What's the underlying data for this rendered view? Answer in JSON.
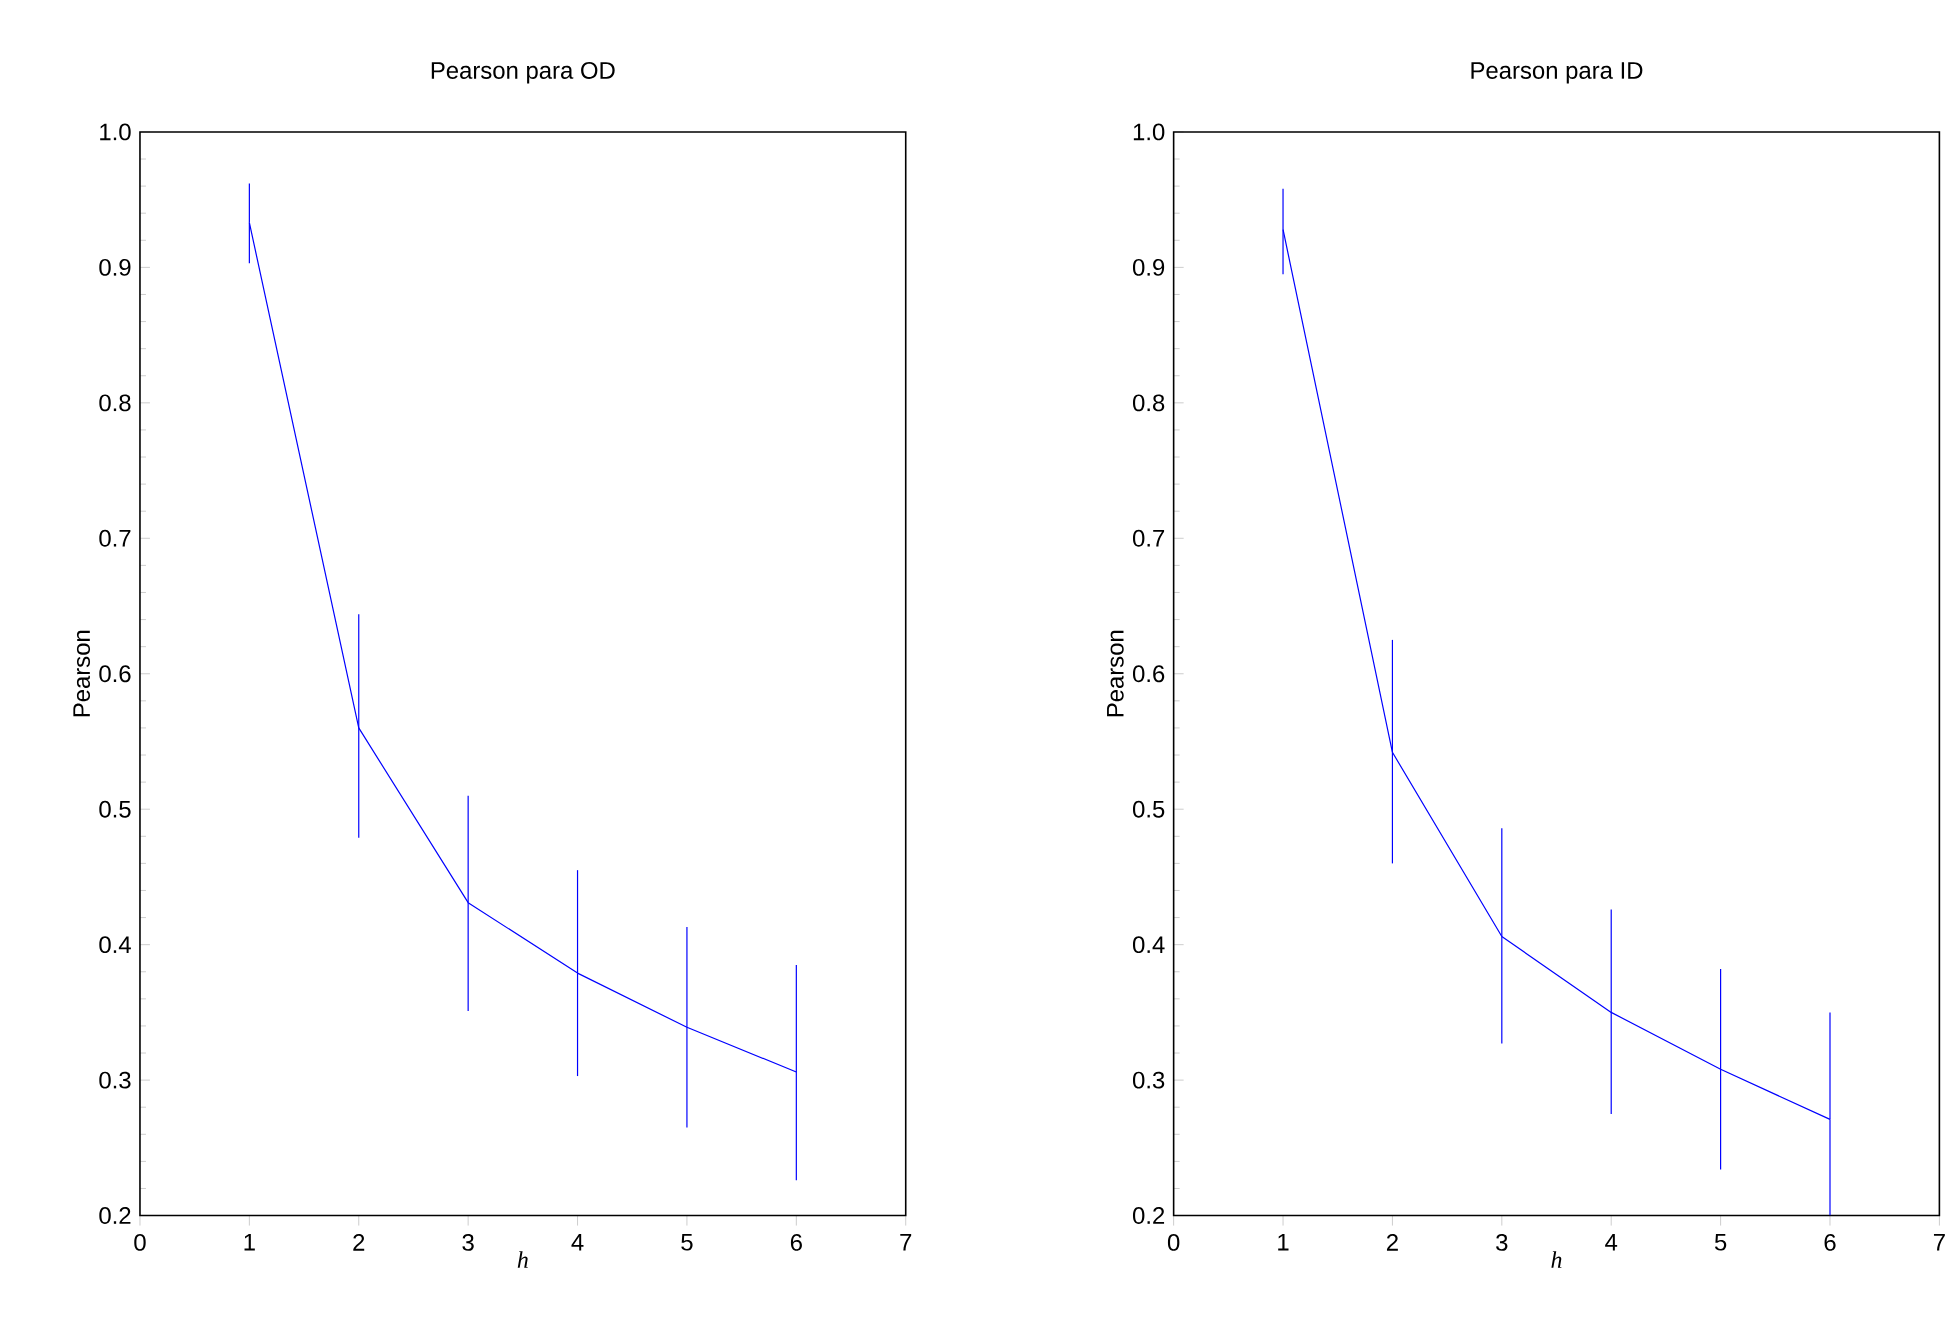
{
  "chart_data": [
    {
      "type": "line",
      "title": "Pearson para OD",
      "xlabel": "h",
      "ylabel": "Pearson",
      "x": [
        1,
        2,
        3,
        4,
        5,
        6
      ],
      "series": [
        {
          "color": "#0000ff",
          "values": [
            0.933,
            0.56,
            0.431,
            0.379,
            0.339,
            0.306
          ],
          "errors": [
            [
              0.903,
              0.962
            ],
            [
              0.479,
              0.644
            ],
            [
              0.351,
              0.51
            ],
            [
              0.303,
              0.455
            ],
            [
              0.265,
              0.413
            ],
            [
              0.226,
              0.385
            ]
          ]
        }
      ],
      "xlim": [
        0,
        7
      ],
      "xticks": [
        0,
        1,
        2,
        3,
        4,
        5,
        6,
        7
      ],
      "ylim": [
        0.2,
        1.0
      ],
      "yticks": [
        0.2,
        0.3,
        0.4,
        0.5,
        0.6,
        0.7,
        0.8,
        0.9,
        {
          "value": 1.0,
          "label": "1.0"
        }
      ],
      "marker": "none",
      "line_style": "solid"
    },
    {
      "type": "line",
      "title": "Pearson para ID",
      "xlabel": "h",
      "ylabel": "Pearson",
      "x": [
        1,
        2,
        3,
        4,
        5,
        6
      ],
      "series": [
        {
          "color": "#0000ff",
          "values": [
            0.928,
            0.542,
            0.406,
            0.35,
            0.308,
            0.271
          ],
          "errors": [
            [
              0.895,
              0.958
            ],
            [
              0.46,
              0.625
            ],
            [
              0.327,
              0.486
            ],
            [
              0.275,
              0.426
            ],
            [
              0.234,
              0.382
            ],
            [
              0.2,
              0.35
            ]
          ]
        }
      ],
      "xlim": [
        0,
        7
      ],
      "xticks": [
        0,
        1,
        2,
        3,
        4,
        5,
        6,
        7
      ],
      "ylim": [
        0.2,
        1.0
      ],
      "yticks": [
        0.2,
        0.3,
        0.4,
        0.5,
        0.6,
        0.7,
        0.8,
        0.9,
        {
          "value": 1.0,
          "label": "1.0"
        }
      ],
      "marker": "none",
      "line_style": "solid"
    }
  ]
}
